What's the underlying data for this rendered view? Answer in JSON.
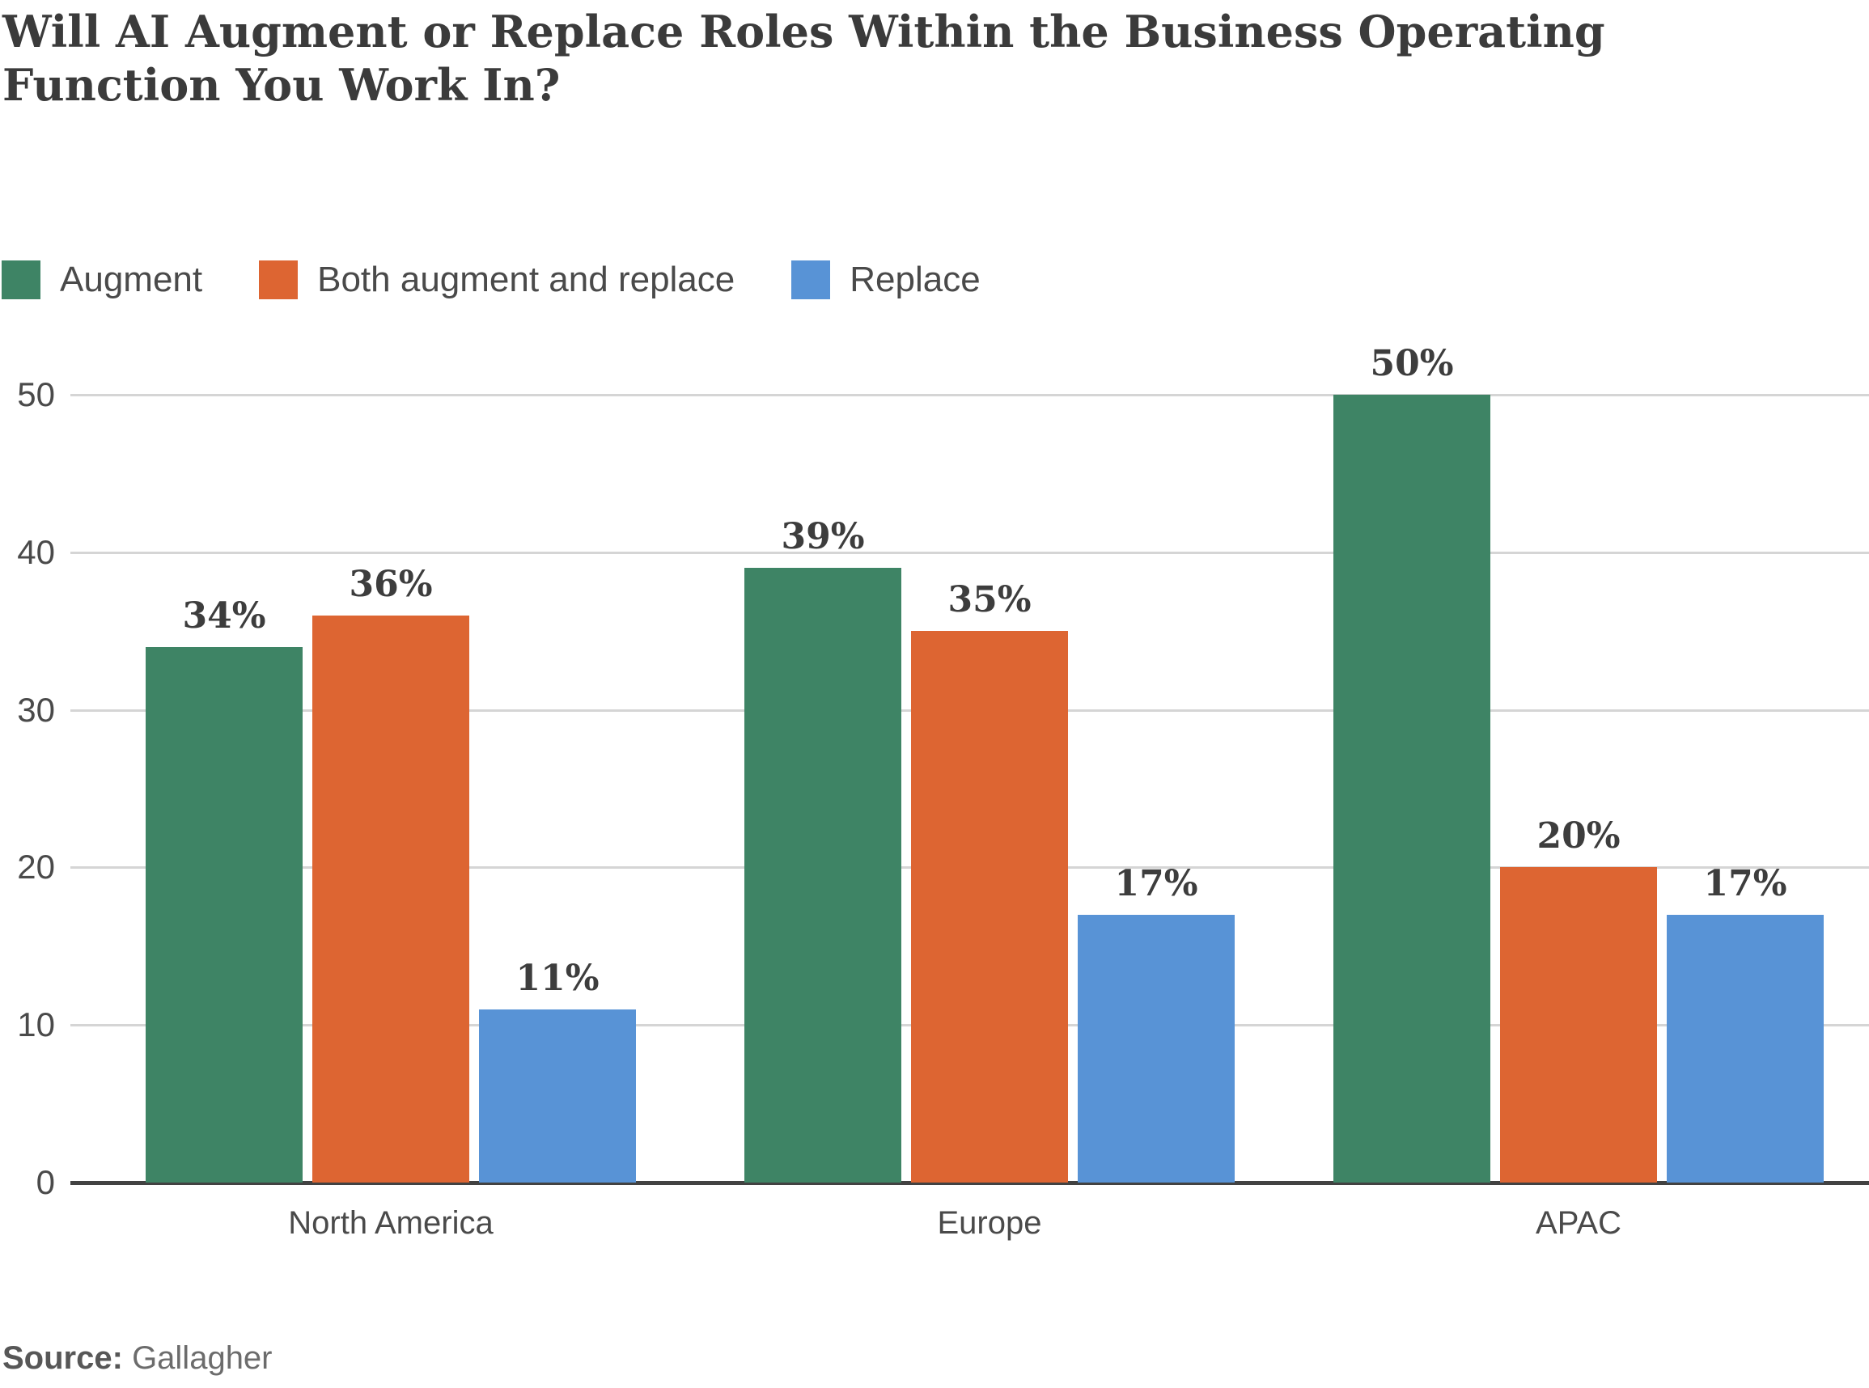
{
  "title_lines": [
    "Will AI Augment or Replace Roles Within the Business Operating",
    "Function You Work In?"
  ],
  "legend": {
    "items": [
      {
        "label": "Augment",
        "color": "#3e8465"
      },
      {
        "label": "Both augment and replace",
        "color": "#dd6532"
      },
      {
        "label": "Replace",
        "color": "#5893d6"
      }
    ]
  },
  "source": {
    "label": "Source:",
    "value": "Gallagher"
  },
  "colors": {
    "augment": "#3e8465",
    "both_augment_and_replace": "#dd6532",
    "replace": "#5893d6",
    "gridline": "#d5d5d5",
    "axis": "#424242",
    "title_text": "#3b3b3b",
    "label_text": "#4a4a4a",
    "value_label_text": "#3d3d3d",
    "background": "#ffffff"
  },
  "chart_data": {
    "type": "bar",
    "title": "Will AI Augment or Replace Roles Within the Business Operating Function You Work In?",
    "categories": [
      "North America",
      "Europe",
      "APAC"
    ],
    "series": [
      {
        "name": "Augment",
        "color": "#3e8465",
        "values": [
          34,
          39,
          50
        ]
      },
      {
        "name": "Both augment and replace",
        "color": "#dd6532",
        "values": [
          36,
          35,
          20
        ]
      },
      {
        "name": "Replace",
        "color": "#5893d6",
        "values": [
          11,
          17,
          17
        ]
      }
    ],
    "value_suffix": "%",
    "xlabel": "",
    "ylabel": "",
    "ylim": [
      0,
      50
    ],
    "yticks": [
      0,
      10,
      20,
      30,
      40,
      50
    ],
    "grid": "horizontal",
    "legend_position": "top",
    "source": "Gallagher"
  }
}
